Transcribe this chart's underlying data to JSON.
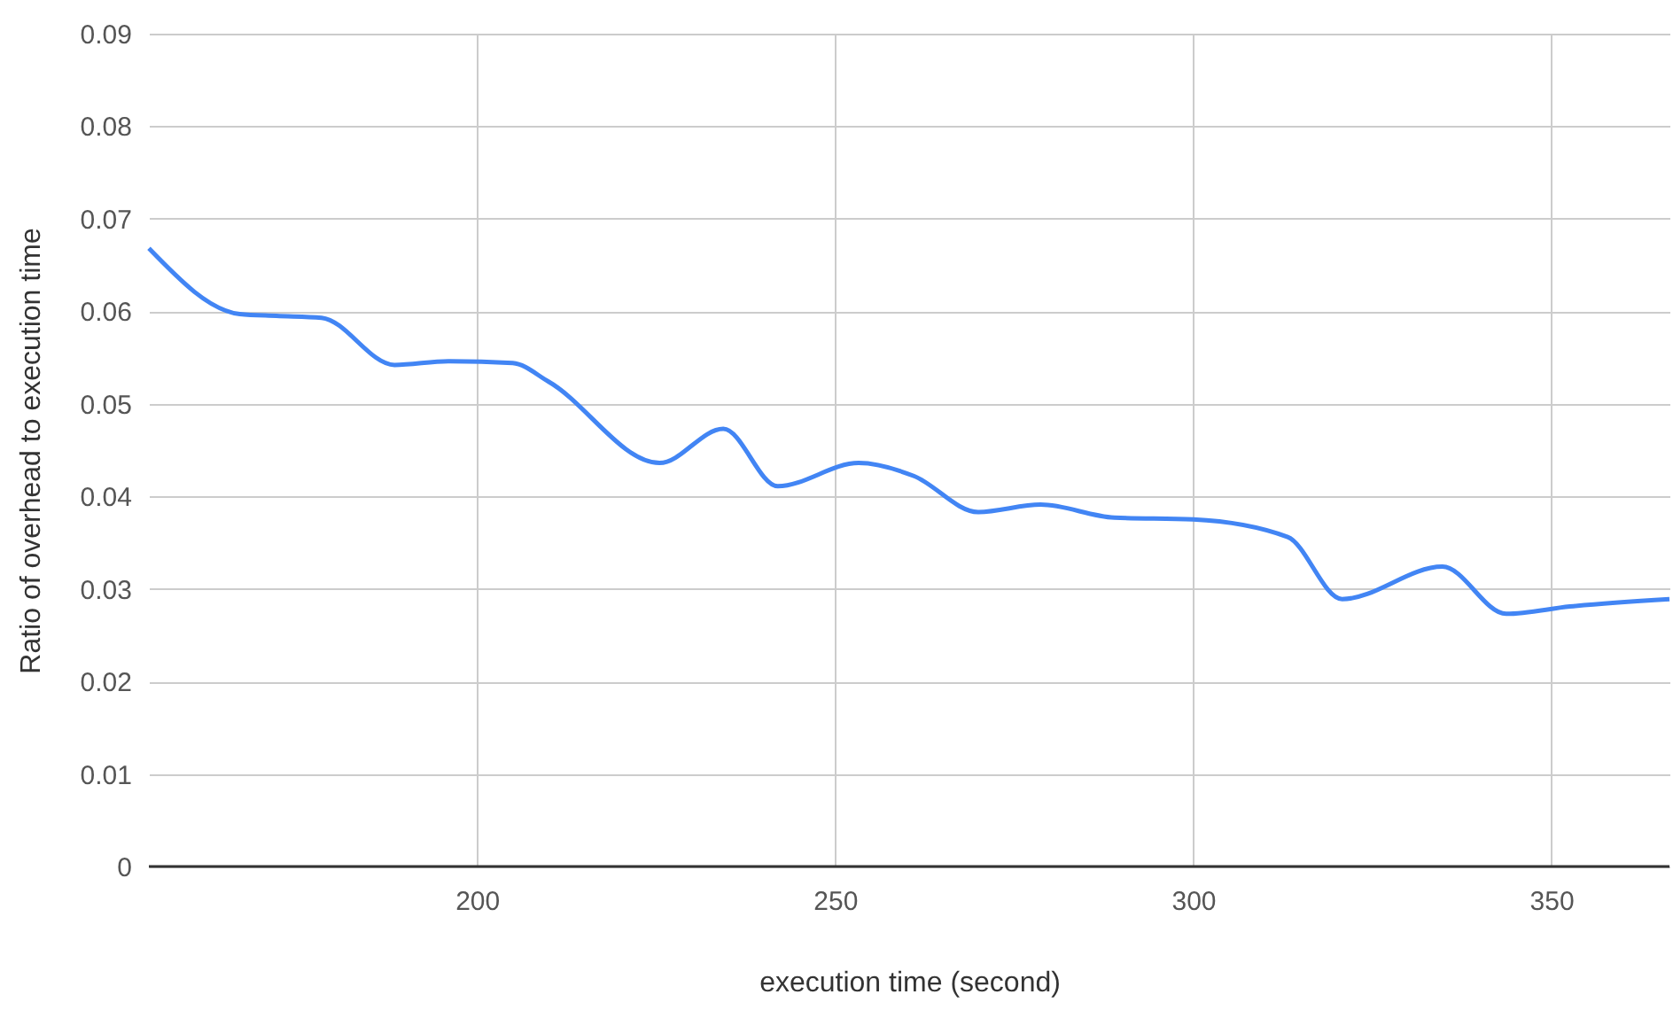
{
  "chart_data": {
    "type": "line",
    "xlabel": "execution time (second)",
    "ylabel": "Ratio of overhead to execution time",
    "x": [
      154.2,
      166.9,
      172,
      178.3,
      188.5,
      196,
      205,
      210,
      225.5,
      234.4,
      242,
      253.3,
      261,
      270,
      278.7,
      289,
      300,
      313.2,
      320.8,
      334.8,
      343.7,
      352.6,
      366.5
    ],
    "series": [
      {
        "color": "#4285f4",
        "values": [
          0.0668,
          0.0597,
          0.0595,
          0.0593,
          0.0542,
          0.0546,
          0.0544,
          0.0524,
          0.0436,
          0.0473,
          0.0411,
          0.0436,
          0.0422,
          0.0383,
          0.0391,
          0.0377,
          0.0375,
          0.0356,
          0.0289,
          0.0324,
          0.0273,
          0.0281,
          0.0289
        ]
      }
    ],
    "xlim": [
      154.2,
      366.5
    ],
    "xticks": [
      200,
      250,
      300,
      350
    ],
    "ylim": [
      0,
      0.09
    ],
    "yticks": [
      0,
      0.01,
      0.02,
      0.03,
      0.04,
      0.05,
      0.06,
      0.07,
      0.08,
      0.09
    ],
    "grid": true,
    "marker": "none",
    "line_style": "solid"
  }
}
